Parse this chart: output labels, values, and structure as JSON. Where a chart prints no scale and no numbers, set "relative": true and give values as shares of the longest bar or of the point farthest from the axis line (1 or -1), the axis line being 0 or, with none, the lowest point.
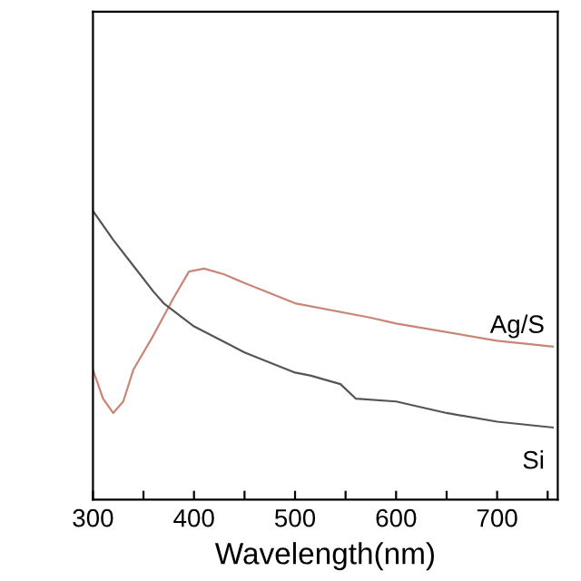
{
  "chart_data": {
    "type": "line",
    "xlabel": "Wavelength(nm)",
    "relative": true,
    "xlim": [
      300,
      760
    ],
    "xticks": [
      300,
      {
        "value": 350,
        "label": null
      },
      400,
      {
        "value": 450,
        "label": null
      },
      500,
      {
        "value": 550,
        "label": null
      },
      600,
      {
        "value": 650,
        "label": null
      },
      700,
      {
        "value": 750,
        "label": null
      }
    ],
    "grid": false,
    "legend": false,
    "series": [
      {
        "name": "Ag/S",
        "color": "#c98575",
        "x": [
          300,
          310,
          320,
          330,
          340,
          360,
          380,
          395,
          410,
          430,
          450,
          500,
          575,
          600,
          700,
          755
        ],
        "values": [
          0.45,
          0.35,
          0.3,
          0.34,
          0.45,
          0.57,
          0.7,
          0.79,
          0.8,
          0.78,
          0.75,
          0.68,
          0.63,
          0.61,
          0.55,
          0.53
        ]
      },
      {
        "name": "Si",
        "color": "#555555",
        "x": [
          300,
          320,
          340,
          360,
          370,
          400,
          450,
          500,
          515,
          545,
          560,
          600,
          650,
          700,
          755
        ],
        "values": [
          1.0,
          0.9,
          0.81,
          0.72,
          0.68,
          0.6,
          0.51,
          0.44,
          0.43,
          0.4,
          0.35,
          0.34,
          0.3,
          0.27,
          0.25
        ]
      }
    ]
  }
}
